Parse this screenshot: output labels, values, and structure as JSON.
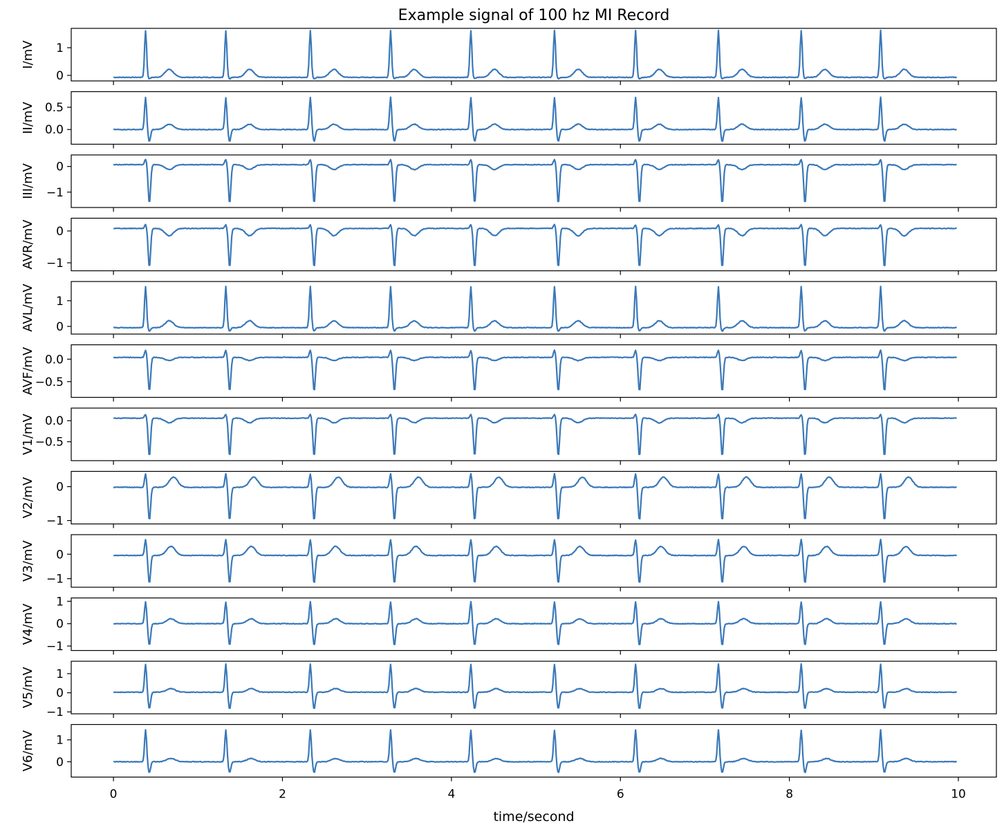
{
  "chart_data": {
    "type": "line",
    "title": "Example signal of 100 hz MI Record",
    "xlabel": "time/second",
    "xlim": [
      -0.5,
      10.45
    ],
    "xticks": [
      0,
      2,
      4,
      6,
      8,
      10
    ],
    "grid": false,
    "line_color": "#3a78b8",
    "beat_times": [
      0.38,
      1.33,
      2.33,
      3.28,
      4.23,
      5.22,
      6.18,
      7.16,
      8.14,
      9.08
    ],
    "end_time": 9.98,
    "series": [
      {
        "name": "I/mV",
        "ylim": [
          -0.2,
          1.7
        ],
        "yticks": [
          0,
          1
        ],
        "ytick_labels": [
          "0",
          "1"
        ],
        "baseline": -0.07,
        "r_peak": 1.62,
        "s_wave": -0.12,
        "t_wave": 0.22,
        "t_offset": 0.28
      },
      {
        "name": "II/mV",
        "ylim": [
          -0.33,
          0.85
        ],
        "yticks": [
          0.0,
          0.5
        ],
        "ytick_labels": [
          "0.0",
          "0.5"
        ],
        "baseline": 0.0,
        "r_peak": 0.72,
        "s_wave": -0.27,
        "t_wave": 0.12,
        "t_offset": 0.28
      },
      {
        "name": "III/mV",
        "ylim": [
          -1.6,
          0.45
        ],
        "yticks": [
          -1,
          0
        ],
        "ytick_labels": [
          "−1",
          "0"
        ],
        "baseline": 0.07,
        "r_peak": 0.28,
        "s_wave": -1.45,
        "t_wave": -0.12,
        "t_offset": 0.28
      },
      {
        "name": "AVR/mV",
        "ylim": [
          -1.25,
          0.4
        ],
        "yticks": [
          -1,
          0
        ],
        "ytick_labels": [
          "−1",
          "0"
        ],
        "baseline": 0.08,
        "r_peak": 0.2,
        "s_wave": -1.15,
        "t_wave": -0.15,
        "t_offset": 0.28
      },
      {
        "name": "AVL/mV",
        "ylim": [
          -0.3,
          1.75
        ],
        "yticks": [
          0,
          1
        ],
        "ytick_labels": [
          "0",
          "1"
        ],
        "baseline": -0.05,
        "r_peak": 1.55,
        "s_wave": -0.18,
        "t_wave": 0.22,
        "t_offset": 0.28
      },
      {
        "name": "AVF/mV",
        "ylim": [
          -0.85,
          0.32
        ],
        "yticks": [
          -0.5,
          0.0
        ],
        "ytick_labels": [
          "−0.5",
          "0.0"
        ],
        "baseline": 0.04,
        "r_peak": 0.2,
        "s_wave": -0.72,
        "t_wave": -0.03,
        "t_offset": 0.28
      },
      {
        "name": "V1/mV",
        "ylim": [
          -0.95,
          0.3
        ],
        "yticks": [
          -0.5,
          0.0
        ],
        "ytick_labels": [
          "−0.5",
          "0.0"
        ],
        "baseline": 0.06,
        "r_peak": 0.15,
        "s_wave": -0.85,
        "t_wave": -0.05,
        "t_offset": 0.28
      },
      {
        "name": "V2/mV",
        "ylim": [
          -1.1,
          0.45
        ],
        "yticks": [
          -1,
          0
        ],
        "ytick_labels": [
          "−1",
          "0"
        ],
        "baseline": -0.02,
        "r_peak": 0.38,
        "s_wave": -1.0,
        "t_wave": 0.28,
        "t_offset": 0.33
      },
      {
        "name": "V3/mV",
        "ylim": [
          -1.35,
          0.8
        ],
        "yticks": [
          -1,
          0
        ],
        "ytick_labels": [
          "−1",
          "0"
        ],
        "baseline": -0.05,
        "r_peak": 0.6,
        "s_wave": -1.2,
        "t_wave": 0.32,
        "t_offset": 0.3
      },
      {
        "name": "V4/mV",
        "ylim": [
          -1.2,
          1.15
        ],
        "yticks": [
          -1,
          0,
          1
        ],
        "ytick_labels": [
          "−1",
          "0",
          "1"
        ],
        "baseline": 0.0,
        "r_peak": 0.98,
        "s_wave": -0.98,
        "t_wave": 0.22,
        "t_offset": 0.3
      },
      {
        "name": "V5/mV",
        "ylim": [
          -1.1,
          1.65
        ],
        "yticks": [
          -1,
          0,
          1
        ],
        "ytick_labels": [
          "−1",
          "0",
          "1"
        ],
        "baseline": 0.03,
        "r_peak": 1.5,
        "s_wave": -0.85,
        "t_wave": 0.22,
        "t_offset": 0.3
      },
      {
        "name": "V6/mV",
        "ylim": [
          -0.7,
          1.7
        ],
        "yticks": [
          0,
          1
        ],
        "ytick_labels": [
          "0",
          "1"
        ],
        "baseline": 0.0,
        "r_peak": 1.45,
        "s_wave": -0.5,
        "t_wave": 0.15,
        "t_offset": 0.3
      }
    ]
  }
}
